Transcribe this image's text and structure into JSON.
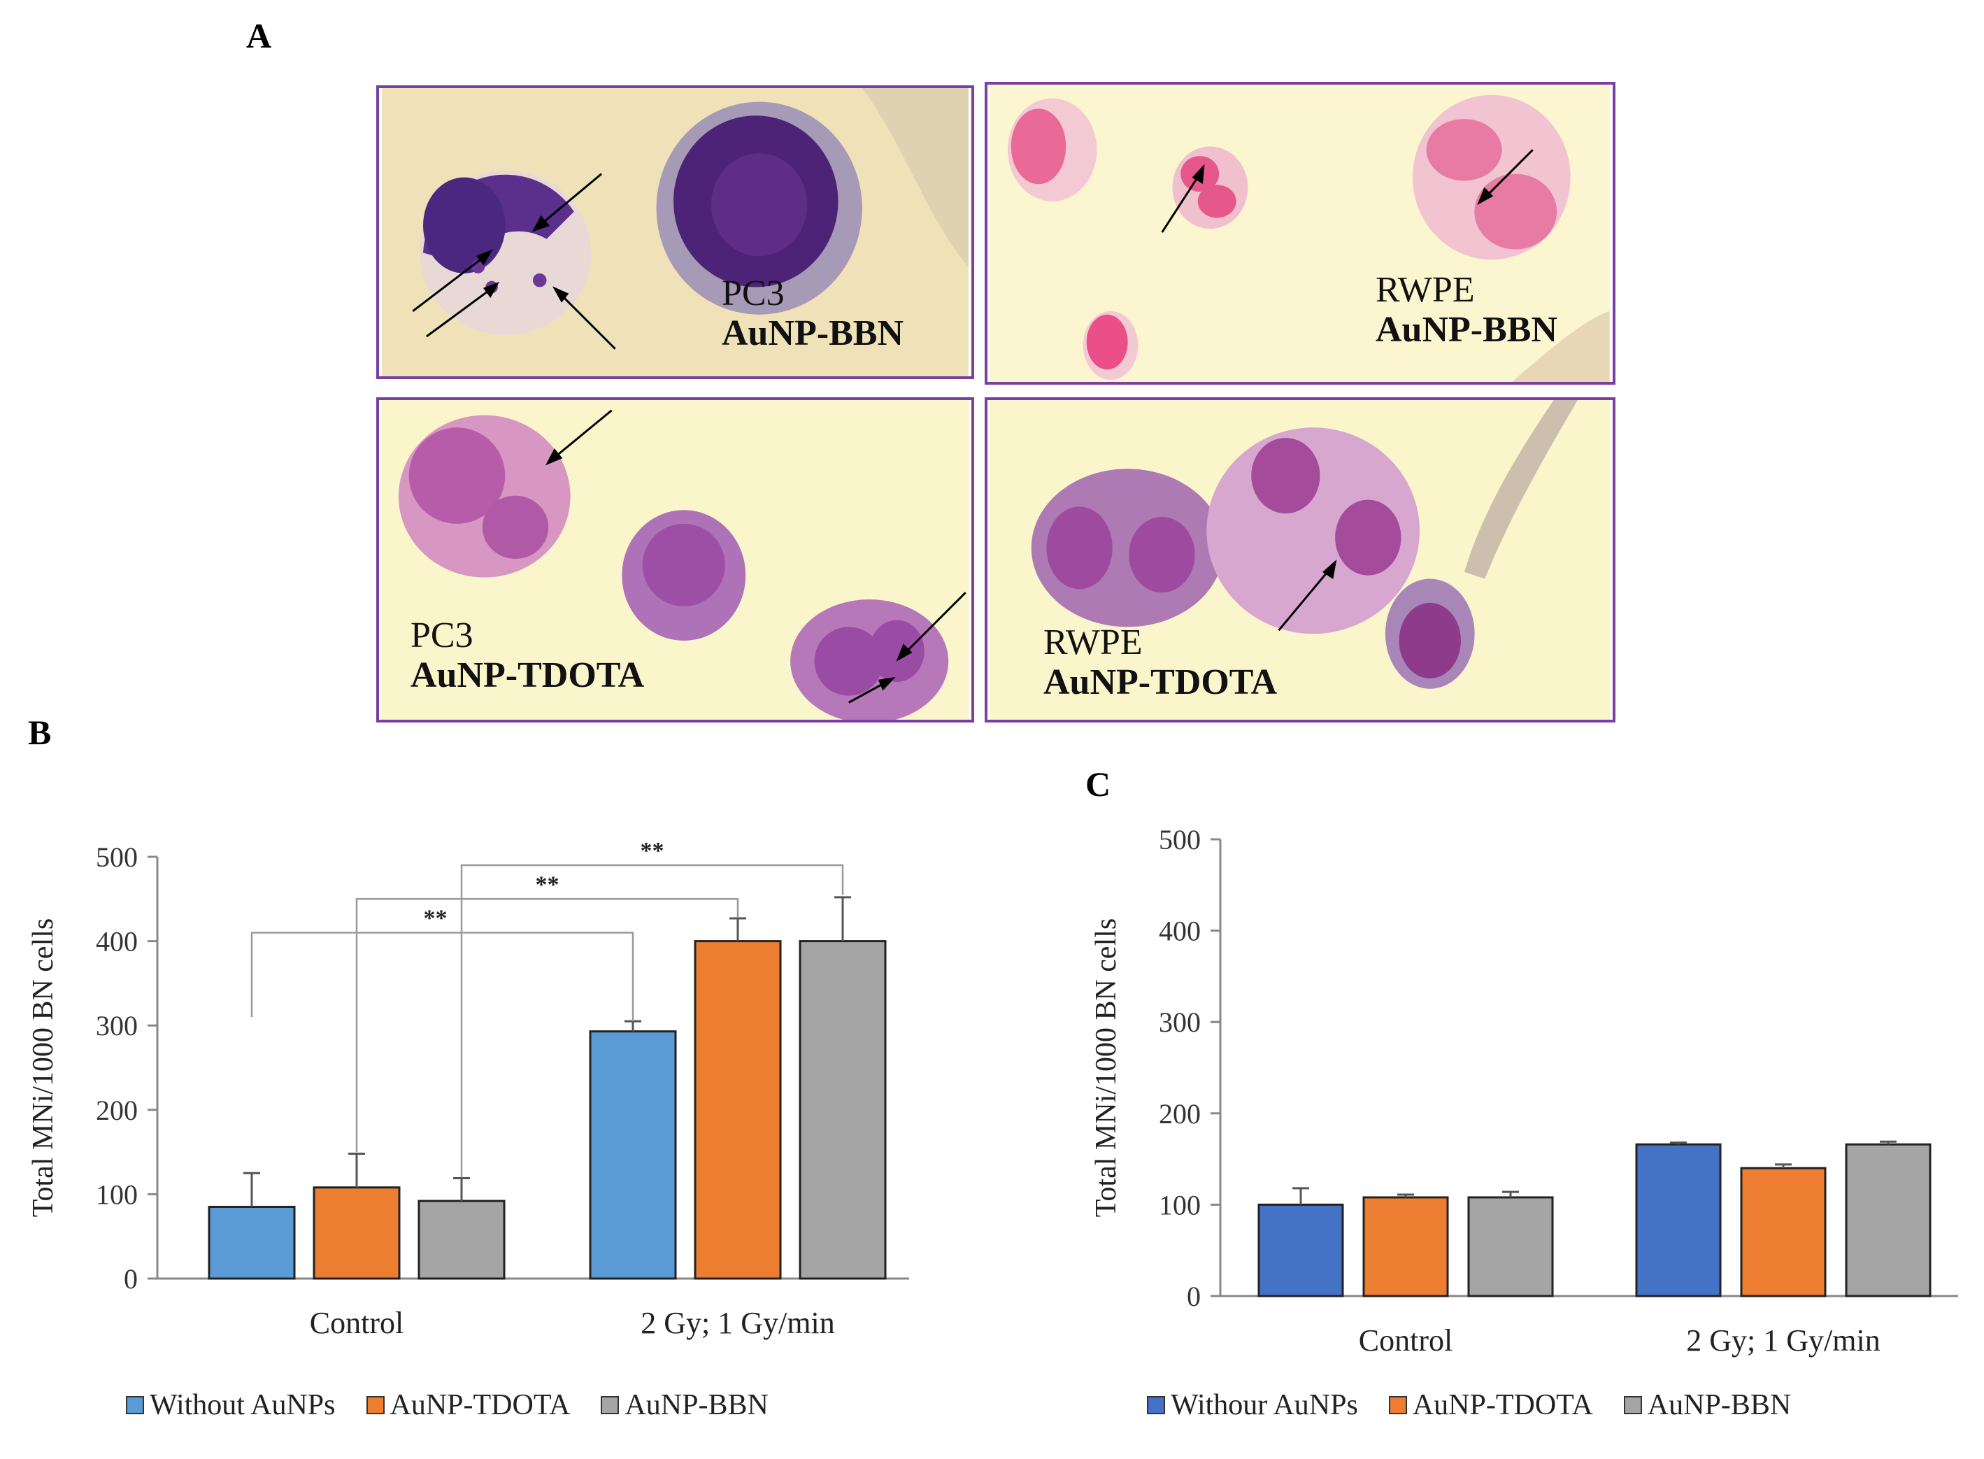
{
  "panels": {
    "a_letter": "A",
    "b_letter": "B",
    "c_letter": "C"
  },
  "micrographs": [
    {
      "cell": "PC3",
      "treatment": "AuNP-BBN",
      "bg": "#efe2b8"
    },
    {
      "cell": "RWPE",
      "treatment": "AuNP-BBN",
      "bg": "#fbf6cf"
    },
    {
      "cell": "PC3",
      "treatment": "AuNP-TDOTA",
      "bg": "#fbf5cc"
    },
    {
      "cell": "RWPE",
      "treatment": "AuNP-TDOTA",
      "bg": "#fbf5cc"
    }
  ],
  "chart_data": [
    {
      "type": "bar",
      "categories": [
        "Control",
        "2 Gy; 1 Gy/min"
      ],
      "ylabel": "Total MNi/1000 BN cells",
      "ylim": [
        0,
        500
      ],
      "yticks": [
        0,
        100,
        200,
        300,
        400,
        500
      ],
      "series": [
        {
          "name": "Without AuNPs",
          "color": "#5b9bd5",
          "values": [
            85,
            293
          ],
          "errors": [
            40,
            12
          ]
        },
        {
          "name": "AuNP-TDOTA",
          "color": "#ed7d31",
          "values": [
            108,
            400
          ],
          "errors": [
            40,
            27
          ]
        },
        {
          "name": "AuNP-BBN",
          "color": "#a5a5a5",
          "values": [
            92,
            400
          ],
          "errors": [
            27,
            52
          ]
        }
      ],
      "significance": [
        "**",
        "**",
        "**"
      ],
      "legend_position": "bottom"
    },
    {
      "type": "bar",
      "categories": [
        "Control",
        "2 Gy; 1 Gy/min"
      ],
      "ylabel": "Total MNi/1000 BN cells",
      "ylim": [
        0,
        500
      ],
      "yticks": [
        0,
        100,
        200,
        300,
        400,
        500
      ],
      "series": [
        {
          "name": "Withour AuNPs",
          "color": "#4472c4",
          "values": [
            100,
            166
          ],
          "errors": [
            18,
            2
          ]
        },
        {
          "name": "AuNP-TDOTA",
          "color": "#ed7d31",
          "values": [
            108,
            140
          ],
          "errors": [
            3,
            4
          ]
        },
        {
          "name": "AuNP-BBN",
          "color": "#a5a5a5",
          "values": [
            108,
            166
          ],
          "errors": [
            6,
            3
          ]
        }
      ],
      "legend_position": "bottom"
    }
  ]
}
